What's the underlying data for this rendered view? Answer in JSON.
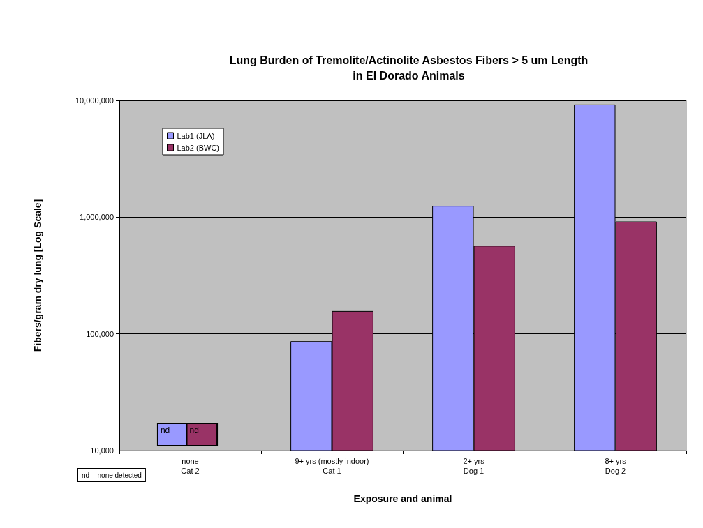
{
  "chart_data": {
    "type": "bar",
    "title": "Lung Burden of Tremolite/Actinolite Asbestos Fibers > 5 um Length\nin El Dorado Animals",
    "xlabel": "Exposure and animal",
    "ylabel": "Fibers/gram dry lung [Log Scale]",
    "categories": [
      "none\nCat 2",
      "9+ yrs (mostly indoor)\nCat 1",
      "2+ yrs\nDog 1",
      "8+ yrs\nDog 2"
    ],
    "series": [
      {
        "name": "Lab1 (JLA)",
        "color": "#9999ff",
        "values": [
          null,
          86500,
          1250000,
          9220000
        ],
        "value_labels": [
          "nd",
          null,
          null,
          null
        ]
      },
      {
        "name": "Lab2 (BWC)",
        "color": "#993366",
        "values": [
          null,
          157000,
          569000,
          918000
        ],
        "value_labels": [
          "nd",
          null,
          null,
          null
        ]
      }
    ],
    "log": true,
    "ylim": [
      10000,
      10000000
    ],
    "yticks": [
      {
        "value": 10000,
        "label": "10,000"
      },
      {
        "value": 100000,
        "label": "100,000"
      },
      {
        "value": 1000000,
        "label": "1,000,000"
      },
      {
        "value": 10000000,
        "label": "10,000,000"
      }
    ],
    "grid": "y",
    "legend": "top left",
    "annotations": [
      "nd = none detected"
    ]
  }
}
